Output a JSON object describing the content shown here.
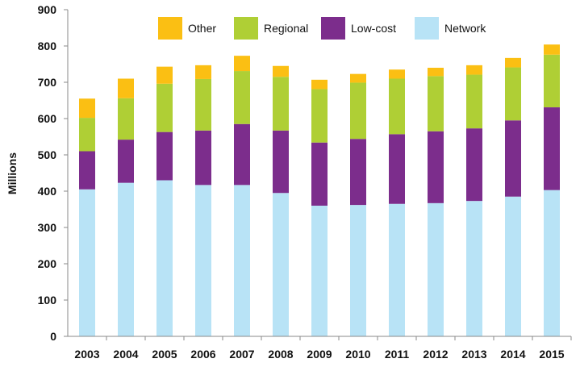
{
  "chart_data": {
    "type": "bar",
    "stacked": true,
    "categories": [
      "2003",
      "2004",
      "2005",
      "2006",
      "2007",
      "2008",
      "2009",
      "2010",
      "2011",
      "2012",
      "2013",
      "2014",
      "2015"
    ],
    "series": [
      {
        "name": "Network",
        "color": "#b8e3f6",
        "values": [
          405,
          423,
          430,
          417,
          417,
          395,
          360,
          362,
          365,
          367,
          373,
          385,
          403
        ]
      },
      {
        "name": "Low-cost",
        "color": "#7c2d8c",
        "values": [
          105,
          119,
          133,
          150,
          168,
          172,
          174,
          182,
          192,
          198,
          200,
          210,
          228
        ]
      },
      {
        "name": "Regional",
        "color": "#afcf35",
        "values": [
          92,
          114,
          133,
          142,
          146,
          148,
          147,
          155,
          153,
          152,
          148,
          146,
          145
        ]
      },
      {
        "name": "Other",
        "color": "#fbbf13",
        "values": [
          53,
          54,
          47,
          38,
          42,
          30,
          26,
          24,
          25,
          23,
          26,
          26,
          28
        ]
      }
    ],
    "legend_order": [
      "Other",
      "Regional",
      "Low-cost",
      "Network"
    ],
    "legend_position": "top",
    "ylabel": "Millions",
    "xlabel": "",
    "title": "",
    "ylim": [
      0,
      900
    ],
    "yticks": [
      0,
      100,
      200,
      300,
      400,
      500,
      600,
      700,
      800,
      900
    ],
    "grid": false
  }
}
